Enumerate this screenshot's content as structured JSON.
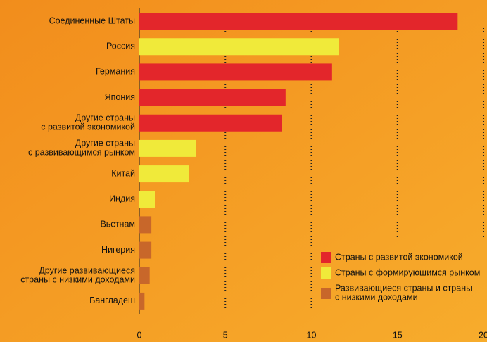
{
  "chart_data": {
    "type": "bar",
    "orientation": "horizontal",
    "categories": [
      "Соединенные Штаты",
      "Россия",
      "Германия",
      "Япония",
      "Другие страны\nс развитой экономикой",
      "Другие страны\nс развивающимся рынком",
      "Китай",
      "Индия",
      "Вьетнам",
      "Нигерия",
      "Другие развивающиеся\nстраны с низкими доходами",
      "Бангладеш"
    ],
    "series": [
      {
        "name": "Страны с развитой экономикой",
        "color": "#e3262b",
        "values": [
          18.5,
          null,
          11.2,
          8.5,
          8.3,
          null,
          null,
          null,
          null,
          null,
          null,
          null
        ]
      },
      {
        "name": "Страны с формирующимся рынком",
        "color": "#f0ea3a",
        "values": [
          null,
          11.6,
          null,
          null,
          null,
          3.3,
          2.9,
          0.9,
          null,
          null,
          null,
          null
        ]
      },
      {
        "name": "Развивающиеся страны и страны\nс низкими доходами",
        "color": "#c8672a",
        "values": [
          null,
          null,
          null,
          null,
          null,
          null,
          null,
          null,
          0.7,
          0.7,
          0.6,
          0.3
        ]
      }
    ],
    "xlim": [
      0,
      20
    ],
    "xticks": [
      0,
      5,
      10,
      15,
      20
    ],
    "grid": true,
    "legend": "lower right"
  }
}
